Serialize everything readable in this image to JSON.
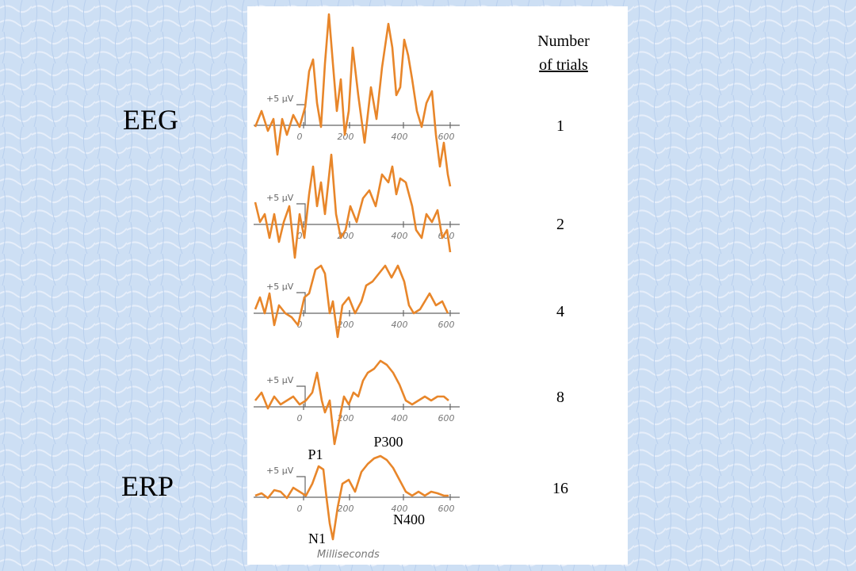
{
  "labels": {
    "eeg": "EEG",
    "erp": "ERP"
  },
  "header": {
    "line1": "Number",
    "line2": "of trials"
  },
  "trials": [
    1,
    2,
    4,
    8,
    16
  ],
  "panels": [
    {
      "scale": "+5 μV",
      "ticks": [
        0,
        200,
        400,
        600
      ]
    },
    {
      "scale": "+5 μV",
      "ticks": [
        0,
        200,
        400,
        600
      ]
    },
    {
      "scale": "+5 μV",
      "ticks": [
        0,
        200,
        400,
        600
      ]
    },
    {
      "scale": "+5 μV",
      "ticks": [
        0,
        200,
        400,
        600
      ]
    },
    {
      "scale": "+5 μV",
      "ticks": [
        0,
        200,
        400,
        600
      ]
    }
  ],
  "components": {
    "p1": "P1",
    "p300": "P300",
    "n1": "N1",
    "n400": "N400"
  },
  "x_axis_label": "Milliseconds"
}
